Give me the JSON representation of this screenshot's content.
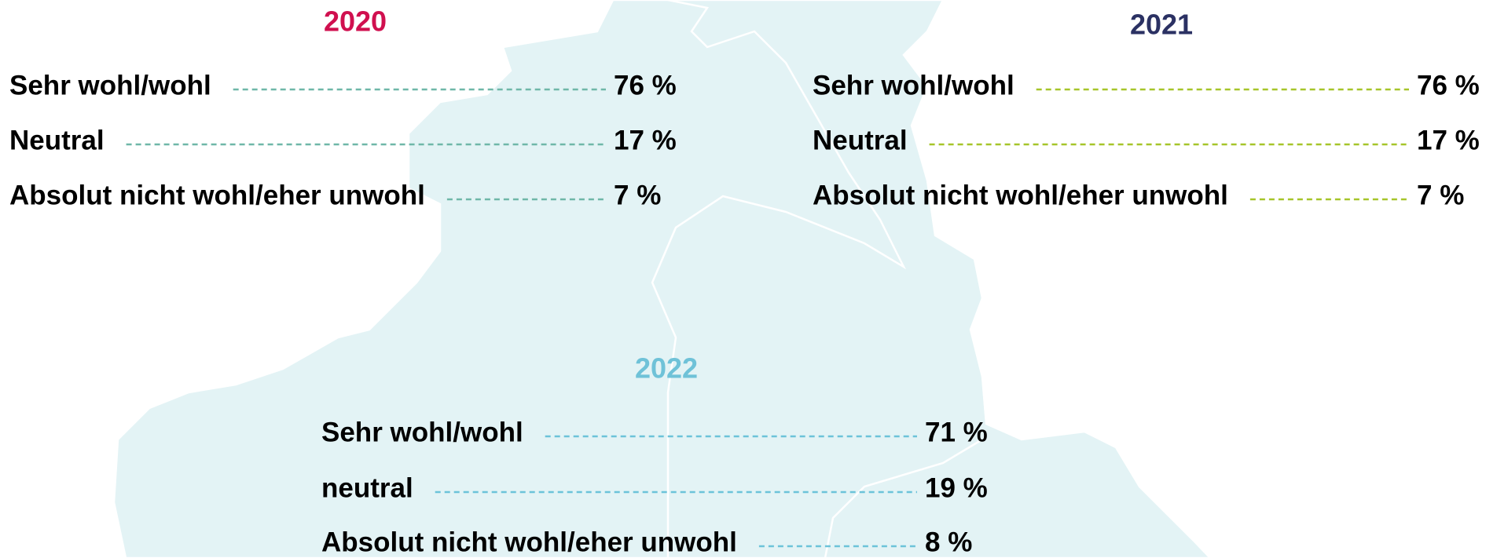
{
  "groups": [
    {
      "year": "2020",
      "items": [
        {
          "label": "Sehr wohl/wohl",
          "value": "76 %"
        },
        {
          "label": "Neutral",
          "value": "17 %"
        },
        {
          "label": "Absolut nicht wohl/eher unwohl",
          "value": "7 %"
        }
      ]
    },
    {
      "year": "2021",
      "items": [
        {
          "label": "Sehr wohl/wohl",
          "value": "76 %"
        },
        {
          "label": "Neutral",
          "value": "17 %"
        },
        {
          "label": "Absolut nicht wohl/eher unwohl",
          "value": "7 %"
        }
      ]
    },
    {
      "year": "2022",
      "items": [
        {
          "label": "Sehr wohl/wohl",
          "value": "71 %"
        },
        {
          "label": "neutral",
          "value": "19 %"
        },
        {
          "label": "Absolut nicht wohl/eher unwohl",
          "value": "8 %"
        }
      ]
    }
  ]
}
